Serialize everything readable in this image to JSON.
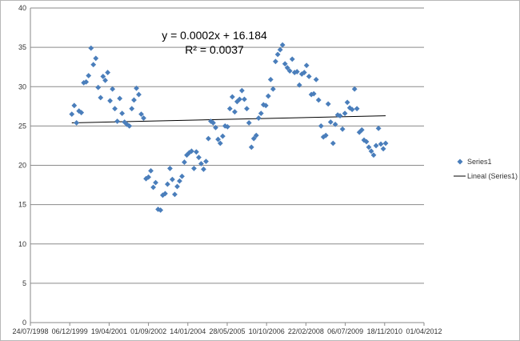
{
  "chart_data": {
    "type": "scatter",
    "title": "",
    "xlabel": "",
    "ylabel": "",
    "x_axis": {
      "type": "date",
      "min": "1998-07-24",
      "max": "2012-04-01",
      "tick_labels": [
        "24/07/1998",
        "06/12/1999",
        "19/04/2001",
        "01/09/2002",
        "14/01/2004",
        "28/05/2005",
        "10/10/2006",
        "22/02/2008",
        "06/07/2009",
        "18/11/2010",
        "01/04/2012"
      ]
    },
    "y_axis": {
      "min": 0,
      "max": 40,
      "major_unit": 5,
      "tick_labels": [
        "0",
        "5",
        "10",
        "15",
        "20",
        "25",
        "30",
        "35",
        "40"
      ]
    },
    "grid": "horizontal",
    "legend_position": "right",
    "colors": {
      "series": "#4a7ebb",
      "trendline": "#000000",
      "grid": "#8a8a8a"
    },
    "series": [
      {
        "name": "Series1",
        "marker": "diamond",
        "points": [
          [
            "2000-01-01",
            26.5
          ],
          [
            "2000-02-01",
            27.6
          ],
          [
            "2000-03-01",
            25.4
          ],
          [
            "2000-04-01",
            26.9
          ],
          [
            "2000-05-01",
            26.7
          ],
          [
            "2000-06-01",
            30.5
          ],
          [
            "2000-07-01",
            30.6
          ],
          [
            "2000-08-01",
            31.4
          ],
          [
            "2000-09-01",
            34.9
          ],
          [
            "2000-10-01",
            32.8
          ],
          [
            "2000-11-01",
            33.6
          ],
          [
            "2000-12-01",
            29.9
          ],
          [
            "2001-01-01",
            28.6
          ],
          [
            "2001-02-01",
            31.3
          ],
          [
            "2001-03-01",
            30.8
          ],
          [
            "2001-04-01",
            31.8
          ],
          [
            "2001-05-01",
            28.2
          ],
          [
            "2001-06-01",
            29.7
          ],
          [
            "2001-07-01",
            27.2
          ],
          [
            "2001-08-01",
            25.6
          ],
          [
            "2001-09-01",
            28.5
          ],
          [
            "2001-10-01",
            26.6
          ],
          [
            "2001-11-01",
            25.5
          ],
          [
            "2001-12-01",
            25.2
          ],
          [
            "2002-01-01",
            25.0
          ],
          [
            "2002-02-01",
            27.2
          ],
          [
            "2002-03-01",
            28.3
          ],
          [
            "2002-04-01",
            29.8
          ],
          [
            "2002-05-01",
            29.0
          ],
          [
            "2002-06-01",
            26.5
          ],
          [
            "2002-07-01",
            26.0
          ],
          [
            "2002-08-01",
            18.3
          ],
          [
            "2002-09-01",
            18.5
          ],
          [
            "2002-10-01",
            19.3
          ],
          [
            "2002-11-01",
            17.2
          ],
          [
            "2002-12-01",
            17.8
          ],
          [
            "2003-01-01",
            14.4
          ],
          [
            "2003-02-01",
            14.3
          ],
          [
            "2003-03-01",
            16.2
          ],
          [
            "2003-04-01",
            16.4
          ],
          [
            "2003-05-01",
            17.6
          ],
          [
            "2003-06-01",
            19.6
          ],
          [
            "2003-07-01",
            18.2
          ],
          [
            "2003-08-01",
            16.3
          ],
          [
            "2003-09-01",
            17.3
          ],
          [
            "2003-10-01",
            18.0
          ],
          [
            "2003-11-01",
            18.6
          ],
          [
            "2003-12-01",
            20.4
          ],
          [
            "2004-01-01",
            21.3
          ],
          [
            "2004-02-01",
            21.6
          ],
          [
            "2004-03-01",
            21.8
          ],
          [
            "2004-04-01",
            19.6
          ],
          [
            "2004-05-01",
            21.7
          ],
          [
            "2004-06-01",
            21.0
          ],
          [
            "2004-07-01",
            20.2
          ],
          [
            "2004-08-01",
            19.5
          ],
          [
            "2004-09-01",
            20.5
          ],
          [
            "2004-10-01",
            23.4
          ],
          [
            "2004-11-01",
            25.6
          ],
          [
            "2004-12-01",
            25.4
          ],
          [
            "2005-01-01",
            24.8
          ],
          [
            "2005-02-01",
            23.3
          ],
          [
            "2005-03-01",
            22.8
          ],
          [
            "2005-04-01",
            23.7
          ],
          [
            "2005-05-01",
            25.0
          ],
          [
            "2005-06-01",
            24.9
          ],
          [
            "2005-07-01",
            27.2
          ],
          [
            "2005-08-01",
            28.7
          ],
          [
            "2005-09-01",
            26.8
          ],
          [
            "2005-10-01",
            28.1
          ],
          [
            "2005-11-01",
            28.4
          ],
          [
            "2005-12-01",
            29.5
          ],
          [
            "2006-01-01",
            28.4
          ],
          [
            "2006-02-01",
            27.2
          ],
          [
            "2006-03-01",
            25.4
          ],
          [
            "2006-04-01",
            22.3
          ],
          [
            "2006-05-01",
            23.4
          ],
          [
            "2006-06-01",
            23.8
          ],
          [
            "2006-07-01",
            26.0
          ],
          [
            "2006-08-01",
            26.6
          ],
          [
            "2006-09-01",
            27.7
          ],
          [
            "2006-10-01",
            27.6
          ],
          [
            "2006-11-01",
            28.8
          ],
          [
            "2006-12-01",
            30.9
          ],
          [
            "2007-01-01",
            29.7
          ],
          [
            "2007-02-01",
            33.2
          ],
          [
            "2007-03-01",
            34.1
          ],
          [
            "2007-04-01",
            34.7
          ],
          [
            "2007-05-01",
            35.3
          ],
          [
            "2007-06-01",
            32.9
          ],
          [
            "2007-07-01",
            32.4
          ],
          [
            "2007-08-01",
            32.0
          ],
          [
            "2007-09-01",
            33.5
          ],
          [
            "2007-10-01",
            31.8
          ],
          [
            "2007-11-01",
            31.9
          ],
          [
            "2007-12-01",
            30.2
          ],
          [
            "2008-01-01",
            31.6
          ],
          [
            "2008-02-01",
            31.8
          ],
          [
            "2008-03-01",
            32.7
          ],
          [
            "2008-04-01",
            31.3
          ],
          [
            "2008-05-01",
            29.0
          ],
          [
            "2008-06-01",
            29.1
          ],
          [
            "2008-07-01",
            30.9
          ],
          [
            "2008-08-01",
            28.3
          ],
          [
            "2008-09-01",
            25.0
          ],
          [
            "2008-10-01",
            23.6
          ],
          [
            "2008-11-01",
            23.8
          ],
          [
            "2008-12-01",
            27.8
          ],
          [
            "2009-01-01",
            25.5
          ],
          [
            "2009-02-01",
            22.8
          ],
          [
            "2009-03-01",
            25.2
          ],
          [
            "2009-04-01",
            26.4
          ],
          [
            "2009-05-01",
            26.3
          ],
          [
            "2009-06-01",
            24.6
          ],
          [
            "2009-07-01",
            26.6
          ],
          [
            "2009-08-01",
            28.0
          ],
          [
            "2009-09-01",
            27.3
          ],
          [
            "2009-10-01",
            27.1
          ],
          [
            "2009-11-01",
            29.7
          ],
          [
            "2009-12-01",
            27.2
          ],
          [
            "2010-01-01",
            24.2
          ],
          [
            "2010-02-01",
            24.5
          ],
          [
            "2010-03-01",
            23.2
          ],
          [
            "2010-04-01",
            23.0
          ],
          [
            "2010-05-01",
            22.3
          ],
          [
            "2010-06-01",
            21.8
          ],
          [
            "2010-07-01",
            21.3
          ],
          [
            "2010-08-01",
            22.5
          ],
          [
            "2010-09-01",
            24.7
          ],
          [
            "2010-10-01",
            22.7
          ],
          [
            "2010-11-01",
            22.1
          ],
          [
            "2010-12-01",
            22.8
          ]
        ]
      }
    ],
    "trendline": {
      "name": "Lineal (Series1)",
      "type": "linear",
      "start": [
        "2000-01-01",
        25.4
      ],
      "end": [
        "2010-12-01",
        26.3
      ],
      "equation": "y = 0.0002x + 16.184",
      "r_squared": "R² = 0.0037"
    }
  }
}
